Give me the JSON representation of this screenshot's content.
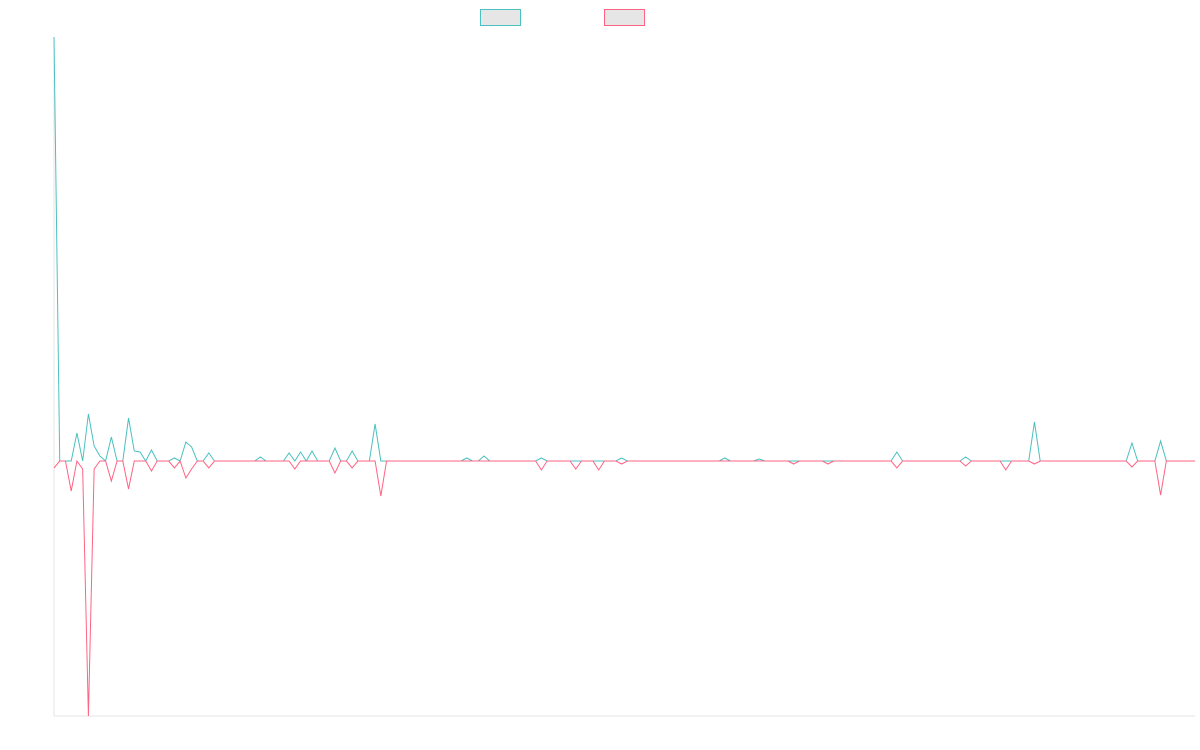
{
  "chart_data": {
    "type": "line",
    "ylim": [
      -255,
      424
    ],
    "legend": "top",
    "series": [
      {
        "color": "#4bc0c0",
        "values": [
          424,
          0,
          0,
          0,
          28,
          0,
          47,
          15,
          5,
          0,
          24,
          0,
          0,
          43,
          10,
          9,
          0,
          11,
          0,
          0,
          0,
          3,
          0,
          19,
          14,
          0,
          0,
          8,
          0,
          0,
          0,
          0,
          0,
          0,
          0,
          0,
          4,
          0,
          0,
          0,
          0,
          8,
          0,
          9,
          0,
          10,
          0,
          0,
          0,
          13,
          0,
          0,
          10,
          0,
          0,
          0,
          37,
          0,
          0,
          0,
          0,
          0,
          0,
          0,
          0,
          0,
          0,
          0,
          0,
          0,
          0,
          0,
          3,
          0,
          0,
          5,
          0,
          0,
          0,
          0,
          0,
          0,
          0,
          0,
          0,
          3,
          0,
          0,
          0,
          0,
          0,
          0,
          0,
          0,
          0,
          0,
          0,
          0,
          0,
          3,
          0,
          0,
          0,
          0,
          0,
          0,
          0,
          0,
          0,
          0,
          0,
          0,
          0,
          0,
          0,
          0,
          0,
          3,
          0,
          0,
          0,
          0,
          0,
          2,
          0,
          0,
          0,
          0,
          0,
          0,
          0,
          0,
          0,
          0,
          0,
          0,
          0,
          0,
          0,
          0,
          0,
          0,
          0,
          0,
          0,
          0,
          0,
          9,
          0,
          0,
          0,
          0,
          0,
          0,
          0,
          0,
          0,
          0,
          0,
          4,
          0,
          0,
          0,
          0,
          0,
          0,
          0,
          0,
          0,
          0,
          0,
          39,
          0,
          0,
          0,
          0,
          0,
          0,
          0,
          0,
          0,
          0,
          0,
          0,
          0,
          0,
          0,
          0,
          18,
          0,
          0,
          0,
          0,
          20,
          0,
          0,
          0,
          0,
          0,
          0
        ]
      },
      {
        "color": "#ff6384",
        "values": [
          -7,
          0,
          0,
          -30,
          0,
          -8,
          -255,
          -8,
          0,
          0,
          -20,
          0,
          0,
          -28,
          0,
          0,
          0,
          -10,
          0,
          0,
          0,
          -7,
          0,
          -17,
          -8,
          0,
          0,
          -7,
          0,
          0,
          0,
          0,
          0,
          0,
          0,
          0,
          0,
          0,
          0,
          0,
          0,
          0,
          -8,
          0,
          0,
          0,
          0,
          0,
          0,
          -12,
          0,
          0,
          -7,
          0,
          0,
          0,
          0,
          -35,
          0,
          0,
          0,
          0,
          0,
          0,
          0,
          0,
          0,
          0,
          0,
          0,
          0,
          0,
          0,
          0,
          0,
          0,
          0,
          0,
          0,
          0,
          0,
          0,
          0,
          0,
          0,
          -9,
          0,
          0,
          0,
          0,
          0,
          -8,
          0,
          0,
          0,
          -9,
          0,
          0,
          0,
          -3,
          0,
          0,
          0,
          0,
          0,
          0,
          0,
          0,
          0,
          0,
          0,
          0,
          0,
          0,
          0,
          0,
          0,
          0,
          0,
          0,
          0,
          0,
          0,
          0,
          0,
          0,
          0,
          0,
          0,
          -3,
          0,
          0,
          0,
          0,
          0,
          -3,
          0,
          0,
          0,
          0,
          0,
          0,
          0,
          0,
          0,
          0,
          0,
          -7,
          0,
          0,
          0,
          0,
          0,
          0,
          0,
          0,
          0,
          0,
          0,
          -5,
          0,
          0,
          0,
          0,
          0,
          0,
          -9,
          0,
          0,
          0,
          0,
          -3,
          0,
          0,
          0,
          0,
          0,
          0,
          0,
          0,
          0,
          0,
          0,
          0,
          0,
          0,
          0,
          0,
          -6,
          0,
          0,
          0,
          0,
          -34,
          0,
          0,
          0,
          0,
          0,
          0
        ]
      }
    ]
  }
}
